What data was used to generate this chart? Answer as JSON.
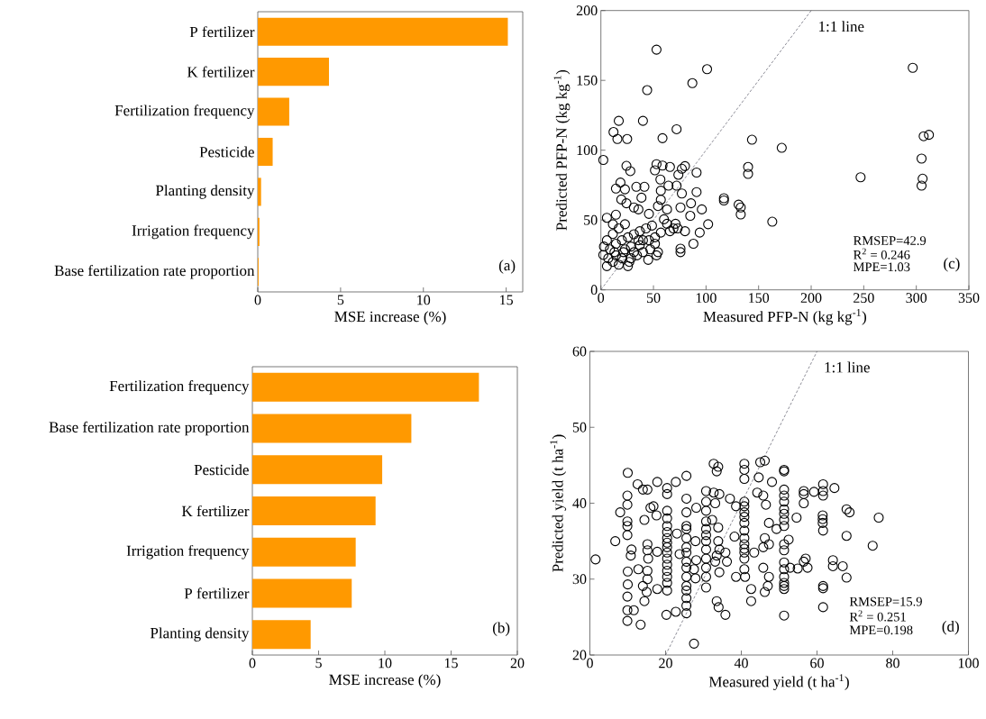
{
  "chart_data": [
    {
      "type": "bar",
      "orientation": "horizontal",
      "categories": [
        "P fertilizer",
        "K fertilizer",
        "Fertilization frequency",
        "Pesticide",
        "Planting density",
        "Irrigation frequency",
        "Base fertilization rate proportion"
      ],
      "values": [
        15.1,
        4.3,
        1.9,
        0.9,
        0.2,
        0.1,
        0.05
      ],
      "color": "#ff9900",
      "xlim": [
        0,
        16
      ],
      "xticks": [
        0,
        5,
        10,
        15
      ],
      "xlabel": "MSE increase (%)",
      "annotations": [
        "(a)"
      ]
    },
    {
      "type": "scatter",
      "marker": "circle",
      "xlabel": "Measured PFP-N (kg kg$^{-1}$)",
      "ylabel": "Predicted PFP-N (kg kg$^{-1}$)",
      "xlim": [
        0,
        350
      ],
      "ylim": [
        0,
        200
      ],
      "xticks": [
        0,
        50,
        100,
        150,
        200,
        250,
        300,
        350
      ],
      "yticks": [
        0,
        50,
        100,
        150,
        200
      ],
      "annotations": [
        "RMSEP=42.9",
        "R$^{2}$ = 0.246",
        "MPE=1.03",
        "(c)"
      ],
      "series": [
        {
          "type": "scatter",
          "color": "#000000",
          "x": [
            52.9,
            101,
            296.6,
            87,
            44,
            17,
            40,
            12,
            15.7,
            25,
            72,
            58.6,
            143.7,
            172,
            307,
            312,
            305,
            306,
            305,
            247,
            2.3,
            140,
            140,
            163,
            117,
            117,
            131,
            133,
            133,
            91,
            91,
            96,
            102,
            94,
            88,
            52.9,
            58.6,
            65.7,
            51.4,
            80,
            77,
            73.7,
            24.3,
            28,
            56.6,
            64.3,
            72,
            57,
            18.6,
            14.3,
            22.9,
            33.7,
            41.4,
            77,
            57,
            38.6,
            19.4,
            24.3,
            31.4,
            35.7,
            45.7,
            54.3,
            75.7,
            85.7,
            62.9,
            85,
            69,
            73,
            62.9,
            80,
            75.7,
            75.7,
            52.9,
            45,
            5.7,
            14.3,
            2.3,
            5.7,
            11.4,
            17,
            25.7,
            28.6,
            34.3,
            40,
            8.6,
            14.3,
            20,
            25.7,
            31.4,
            37,
            42.9,
            48.6,
            11.4,
            17,
            22.9,
            5.7,
            2.9,
            22.9,
            28.6,
            37,
            45.7,
            51.4,
            57,
            65.7,
            14.3,
            20,
            51.4,
            54.3,
            47,
            40,
            7,
            21.4,
            31.4,
            27,
            12.9,
            35.7,
            11.4,
            60,
            71
          ],
          "values": [
            172,
            158,
            159,
            148,
            143,
            121,
            121,
            113,
            108,
            108,
            115,
            108.6,
            107.5,
            101.7,
            110,
            111,
            94,
            79.6,
            74.6,
            80.6,
            93,
            88,
            83,
            48.8,
            65.6,
            64,
            61,
            59,
            54,
            84,
            70,
            57.6,
            47,
            41,
            33,
            90,
            89,
            88,
            85.6,
            88.6,
            86.7,
            82.4,
            88.8,
            85,
            79,
            74.6,
            74.6,
            71,
            76.8,
            72.5,
            72,
            73.8,
            73.8,
            69,
            64.5,
            66,
            64.7,
            62,
            59,
            57.6,
            54.4,
            60,
            59,
            62,
            57.6,
            53,
            44,
            44,
            47.3,
            42,
            27,
            29.5,
            24.7,
            21.5,
            51.6,
            53.8,
            25,
            17,
            20,
            18,
            17,
            22.6,
            24.7,
            27,
            29,
            33,
            35.5,
            37.6,
            39.8,
            42,
            44,
            46,
            40,
            44,
            47,
            35.5,
            31,
            29,
            31,
            32,
            35.5,
            37.6,
            41,
            42,
            24.7,
            22.6,
            33,
            27,
            29,
            35.5,
            22.6,
            27,
            27,
            20,
            27,
            35.5,
            47,
            50.5,
            47.3
          ]
        },
        {
          "type": "line",
          "name": "1:1 line",
          "color": "#404050",
          "line_style": "dashed",
          "marker": "none",
          "x": [
            0,
            200
          ],
          "values": [
            0,
            200
          ]
        }
      ]
    },
    {
      "type": "bar",
      "orientation": "horizontal",
      "categories": [
        "Fertilization frequency",
        "Base fertilization rate proportion",
        "Pesticide",
        "K fertilizer",
        "Irrigation frequency",
        "P fertilizer",
        "Planting density"
      ],
      "values": [
        17.1,
        12.0,
        9.8,
        9.3,
        7.8,
        7.5,
        4.4
      ],
      "color": "#ff9900",
      "xlim": [
        0,
        20
      ],
      "xticks": [
        0,
        5,
        10,
        15,
        20
      ],
      "xlabel": "MSE increase (%)",
      "annotations": [
        "(b)"
      ]
    },
    {
      "type": "scatter",
      "marker": "circle",
      "xlabel": "Measured yield (t ha$^{-1}$)",
      "ylabel": "Predicted yield (t ha$^{-1}$)",
      "xlim": [
        0,
        100
      ],
      "ylim": [
        20,
        60
      ],
      "xticks": [
        0,
        20,
        40,
        60,
        80,
        100
      ],
      "yticks": [
        20,
        30,
        40,
        50,
        60
      ],
      "annotations": [
        "RMSEP=15.9",
        "R$^{2}$ = 0.251",
        "MPE=0.198",
        "(d)"
      ],
      "series": [
        {
          "type": "scatter",
          "color": "#000000",
          "x": [
            10,
            9.9,
            9.9,
            9.9,
            9.9,
            9.9,
            10,
            10,
            9.9,
            9.9,
            9.9,
            11.6,
            13.4,
            6.7,
            8,
            11,
            10.8,
            12.6,
            14,
            15.2,
            17.8,
            14.4,
            16,
            16.8,
            17.6,
            15.2,
            15.2,
            15.4,
            15.2,
            15.2,
            14,
            15,
            14.4,
            12.8,
            17.8,
            17.8,
            20.4,
            20.4,
            20.4,
            20.4,
            20.4,
            20.4,
            20.4,
            20.4,
            20.4,
            20.4,
            20.4,
            20.4,
            20.4,
            20.4,
            20.4,
            20.4,
            20.2,
            22.7,
            23,
            23.7,
            22.7,
            25.5,
            25.5,
            25.5,
            25.5,
            25.5,
            25.5,
            25.5,
            25.5,
            25.5,
            25.5,
            25.5,
            25.5,
            25.5,
            25.5,
            25.5,
            25.5,
            27.5,
            28.1,
            27.9,
            28.1,
            27.5,
            27.9,
            30.7,
            30.7,
            30.7,
            30.7,
            30.7,
            30.7,
            30.7,
            30.7,
            30.7,
            30.7,
            30.7,
            30.7,
            32.7,
            33.9,
            33.5,
            32.7,
            34.2,
            33.1,
            32.3,
            33.9,
            33.9,
            34.2,
            33.5,
            33.1,
            35.8,
            36.2,
            34.2,
            33.5,
            34,
            35.8,
            37,
            38.6,
            38.2,
            38.6,
            41,
            42.6,
            42.6,
            40.8,
            40.8,
            40.8,
            40.8,
            40.8,
            40.8,
            40.8,
            40.8,
            40.8,
            40.8,
            40.8,
            40.8,
            40.8,
            40.8,
            40.8,
            45,
            46.2,
            44.6,
            44.2,
            45.8,
            46.5,
            47.3,
            49.3,
            46.2,
            47.3,
            45.8,
            43.4,
            48.1,
            45.8,
            47.3,
            47,
            46.2,
            51.3,
            51.3,
            51.3,
            51.3,
            51.3,
            51.3,
            51.3,
            51.3,
            51.3,
            51.3,
            51.3,
            51.3,
            51.3,
            51.3,
            51.3,
            51.3,
            51.3,
            51.3,
            52.5,
            56.5,
            56.5,
            56.5,
            59.2,
            61.6,
            61.6,
            61.6,
            64.6,
            54.6,
            61.5,
            61.5,
            61.5,
            61.6,
            67.8,
            68.6,
            76.3,
            67.8,
            74.7,
            57,
            56.5,
            57.5,
            54.9,
            52.9,
            64.2,
            64.2,
            66.8,
            67.8,
            61.6,
            61.6,
            61.6,
            1.5
          ],
          "values": [
            44,
            41,
            39.8,
            37.6,
            37,
            35.8,
            31,
            29.3,
            27.7,
            25.9,
            24.5,
            25.9,
            24,
            35,
            38.8,
            33.9,
            33.1,
            42.5,
            41.8,
            41.8,
            42.8,
            37.8,
            39.4,
            39.6,
            38.4,
            34.6,
            33.8,
            32.7,
            31.1,
            30,
            29.1,
            28.3,
            27.1,
            31.3,
            33.6,
            28.7,
            42,
            41.2,
            39,
            38,
            37,
            36.2,
            35.4,
            34.8,
            34.2,
            33.5,
            32.7,
            31.9,
            31.1,
            30.3,
            29.5,
            28.5,
            25.3,
            42.8,
            36,
            33.3,
            25.7,
            43.6,
            40.6,
            38.8,
            37,
            36.6,
            35.4,
            34.2,
            33.5,
            32.3,
            31.5,
            30.3,
            29.1,
            28.5,
            27.5,
            26.5,
            25.5,
            21.5,
            39.4,
            35,
            32.5,
            31.3,
            30.1,
            41.6,
            40.2,
            39,
            37.6,
            36.6,
            35.8,
            35,
            33.9,
            32.7,
            31.5,
            30.3,
            28.9,
            45.2,
            44.8,
            44.2,
            41.4,
            41.2,
            40,
            37.8,
            36.8,
            35,
            33.9,
            33.1,
            32.3,
            33.5,
            32.3,
            30.9,
            27.1,
            26.3,
            25.3,
            40.6,
            39.6,
            35.6,
            30.3,
            30.3,
            28.7,
            27.1,
            45.2,
            44.4,
            43.2,
            40.2,
            39.6,
            38.8,
            38.2,
            37.4,
            36.4,
            35.4,
            34.6,
            34,
            33.5,
            32.7,
            31.3,
            45.4,
            45.6,
            43.4,
            41.4,
            41,
            39.8,
            37.4,
            36.6,
            35.4,
            34.6,
            34.2,
            33.5,
            42.8,
            31.5,
            30.3,
            29.1,
            28.3,
            44.4,
            44.2,
            41.8,
            41,
            40.2,
            39.2,
            38.6,
            37.8,
            37,
            34.6,
            33.8,
            32.2,
            31.3,
            30.3,
            29.5,
            29.1,
            28.7,
            25.2,
            35.2,
            41.6,
            41.2,
            40,
            41.5,
            42.5,
            41.6,
            41,
            42,
            38.1,
            38.4,
            37.9,
            37.4,
            36.4,
            39.2,
            38.8,
            38.1,
            35.7,
            34.4,
            32.7,
            32.3,
            31.5,
            31.4,
            31.5,
            32.5,
            31.7,
            31.7,
            30.2,
            29.1,
            28.8,
            26.3,
            32.6
          ]
        },
        {
          "type": "line",
          "name": "1:1 line",
          "color": "#404050",
          "line_style": "dashed",
          "marker": "none",
          "x": [
            20,
            60
          ],
          "values": [
            20,
            60
          ]
        }
      ]
    }
  ]
}
